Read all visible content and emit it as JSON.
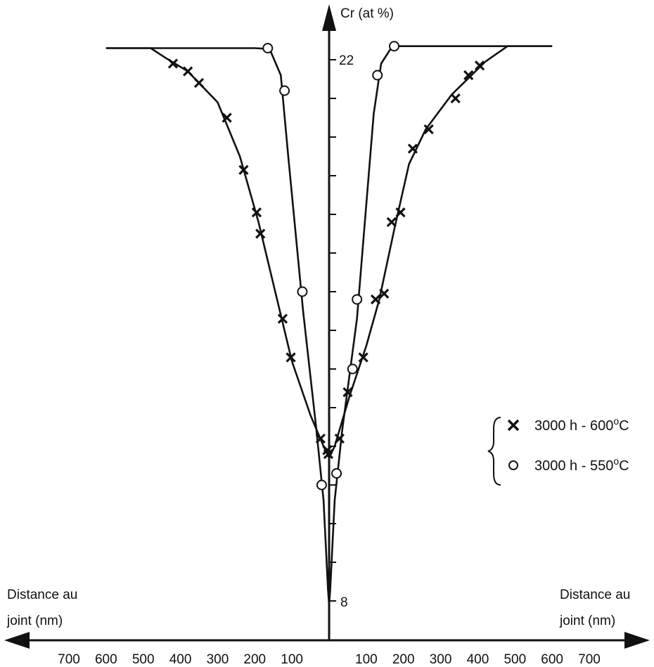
{
  "chart_data": {
    "type": "line",
    "title": "",
    "ylabel": "Cr (at %)",
    "xlabel_left": [
      "Distance au",
      "joint (nm)"
    ],
    "xlabel_right": [
      "Distance au",
      "joint (nm)"
    ],
    "x_tick_labels": [
      "700",
      "600",
      "500",
      "400",
      "300",
      "200",
      "100",
      "100",
      "200",
      "300",
      "400",
      "500",
      "600",
      "700"
    ],
    "y_tick_labels": [
      "8",
      "22"
    ],
    "xlim": [
      -700,
      700
    ],
    "ylim": [
      8,
      22.4
    ],
    "grid": false,
    "legend_position": "right",
    "series": [
      {
        "name": "3000 h - 600°C",
        "marker": "x",
        "points": [
          [
            -420,
            21.9
          ],
          [
            -380,
            21.7
          ],
          [
            -350,
            21.4
          ],
          [
            -275,
            20.5
          ],
          [
            -230,
            19.15
          ],
          [
            -195,
            18.05
          ],
          [
            -185,
            17.5
          ],
          [
            -125,
            15.3
          ],
          [
            -103,
            14.3
          ],
          [
            -23,
            12.2
          ],
          [
            -5,
            11.9
          ],
          [
            -2,
            11.8
          ],
          [
            28,
            12.2
          ],
          [
            50,
            13.4
          ],
          [
            92,
            14.3
          ],
          [
            125,
            15.8
          ],
          [
            148,
            15.95
          ],
          [
            168,
            17.8
          ],
          [
            192,
            18.05
          ],
          [
            225,
            19.7
          ],
          [
            268,
            20.2
          ],
          [
            340,
            21.0
          ],
          [
            375,
            21.6
          ],
          [
            405,
            21.85
          ]
        ],
        "curve": [
          [
            -600,
            22.3
          ],
          [
            -480,
            22.3
          ],
          [
            -440,
            22.05
          ],
          [
            -380,
            21.7
          ],
          [
            -300,
            20.9
          ],
          [
            -240,
            19.5
          ],
          [
            -190,
            17.8
          ],
          [
            -140,
            15.8
          ],
          [
            -100,
            14.2
          ],
          [
            -50,
            12.8
          ],
          [
            -15,
            12.0
          ],
          [
            0,
            11.7
          ],
          [
            15,
            12.0
          ],
          [
            55,
            13.3
          ],
          [
            100,
            14.6
          ],
          [
            135,
            15.8
          ],
          [
            175,
            17.6
          ],
          [
            215,
            19.3
          ],
          [
            260,
            20.2
          ],
          [
            330,
            21.1
          ],
          [
            420,
            21.95
          ],
          [
            480,
            22.35
          ],
          [
            600,
            22.35
          ]
        ]
      },
      {
        "name": "3000 h - 550°C",
        "marker": "o",
        "points": [
          [
            -165,
            22.3
          ],
          [
            -120,
            21.2
          ],
          [
            -72,
            16.0
          ],
          [
            -20,
            11.0
          ],
          [
            20,
            11.3
          ],
          [
            75,
            15.8
          ],
          [
            63,
            14.0
          ],
          [
            130,
            21.6
          ],
          [
            175,
            22.35
          ]
        ],
        "curve": [
          [
            -600,
            22.3
          ],
          [
            -200,
            22.3
          ],
          [
            -160,
            22.28
          ],
          [
            -130,
            21.6
          ],
          [
            -110,
            19.5
          ],
          [
            -70,
            15.5
          ],
          [
            -35,
            12.5
          ],
          [
            -15,
            10.6
          ],
          [
            -3,
            8.3
          ],
          [
            0,
            7.9
          ],
          [
            3,
            8.3
          ],
          [
            15,
            10.6
          ],
          [
            35,
            12.4
          ],
          [
            75,
            15.3
          ],
          [
            120,
            20.6
          ],
          [
            140,
            21.9
          ],
          [
            170,
            22.35
          ],
          [
            600,
            22.35
          ]
        ]
      }
    ],
    "legend": [
      {
        "marker": "x",
        "label": "3000 h - 600",
        "sup": "o",
        "suffix": "C"
      },
      {
        "marker": "o",
        "label": "3000 h - 550",
        "sup": "o",
        "suffix": "C"
      }
    ]
  }
}
